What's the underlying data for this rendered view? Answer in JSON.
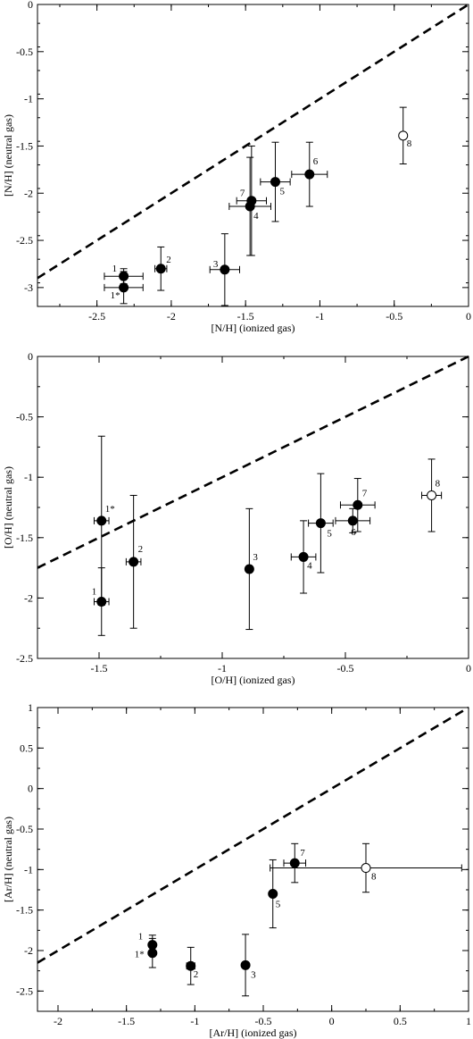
{
  "chart_data": [
    {
      "type": "scatter",
      "xlabel": "[N/H] (ionized gas)",
      "ylabel": "[N/H] (neutral gas)",
      "xlim": [
        -2.9,
        0
      ],
      "ylim": [
        -3.2,
        0
      ],
      "xticks": [
        -2.5,
        -2,
        -1.5,
        -1,
        -0.5,
        0
      ],
      "xtick_labels": [
        "-2.5",
        "-2",
        "-1.5",
        "-1",
        "-0.5",
        "0"
      ],
      "yticks": [
        0,
        -0.5,
        -1,
        -1.5,
        -2,
        -2.5,
        -3
      ],
      "ytick_labels": [
        "0",
        "-0.5",
        "-1",
        "-1.5",
        "-2",
        "-2.5",
        "-3"
      ],
      "one_to_one_line": true,
      "grid": false,
      "points": [
        {
          "label": "1",
          "x": -2.32,
          "y": -2.88,
          "xerr": 0.13,
          "yerr": 0.08,
          "filled": true
        },
        {
          "label": "1*",
          "x": -2.32,
          "y": -3.0,
          "xerr": 0.13,
          "yerr": 0.17,
          "filled": true
        },
        {
          "label": "2",
          "x": -2.07,
          "y": -2.8,
          "xerr": 0.04,
          "yerr": 0.23,
          "filled": true
        },
        {
          "label": "3",
          "x": -1.64,
          "y": -2.81,
          "xerr": 0.1,
          "yerr": 0.38,
          "filled": true
        },
        {
          "label": "4",
          "x": -1.47,
          "y": -2.14,
          "xerr": 0.14,
          "yerr": 0.52,
          "filled": true
        },
        {
          "label": "7",
          "x": -1.46,
          "y": -2.08,
          "xerr": 0.1,
          "yerr": 0.58,
          "filled": true
        },
        {
          "label": "5",
          "x": -1.3,
          "y": -1.88,
          "xerr": 0.1,
          "yerr": 0.42,
          "filled": true
        },
        {
          "label": "6",
          "x": -1.07,
          "y": -1.8,
          "xerr": 0.12,
          "yerr": 0.34,
          "filled": true
        },
        {
          "label": "8",
          "x": -0.44,
          "y": -1.39,
          "xerr": 0.0,
          "yerr": 0.3,
          "filled": false
        }
      ]
    },
    {
      "type": "scatter",
      "xlabel": "[O/H] (ionized gas)",
      "ylabel": "[O/H] (neutral gas)",
      "xlim": [
        -1.75,
        0
      ],
      "ylim": [
        -2.5,
        0
      ],
      "xticks": [
        -1.5,
        -1,
        -0.5,
        0
      ],
      "xtick_labels": [
        "-1.5",
        "-1",
        "-0.5",
        "0"
      ],
      "yticks": [
        0,
        -0.5,
        -1,
        -1.5,
        -2,
        -2.5
      ],
      "ytick_labels": [
        "0",
        "-0.5",
        "-1",
        "-1.5",
        "-2",
        "-2.5"
      ],
      "one_to_one_line": true,
      "grid": false,
      "points": [
        {
          "label": "1*",
          "x": -1.49,
          "y": -1.36,
          "xerr": 0.03,
          "yerr": 0.7,
          "filled": true
        },
        {
          "label": "1",
          "x": -1.49,
          "y": -2.03,
          "xerr": 0.03,
          "yerr": 0.28,
          "filled": true
        },
        {
          "label": "2",
          "x": -1.36,
          "y": -1.7,
          "xerr": 0.03,
          "yerr": 0.55,
          "filled": true
        },
        {
          "label": "3",
          "x": -0.89,
          "y": -1.76,
          "xerr": 0.0,
          "yerr": 0.5,
          "filled": true
        },
        {
          "label": "4",
          "x": -0.67,
          "y": -1.66,
          "xerr": 0.05,
          "yerr": 0.3,
          "filled": true
        },
        {
          "label": "5",
          "x": -0.6,
          "y": -1.38,
          "xerr": 0.05,
          "yerr": 0.41,
          "filled": true
        },
        {
          "label": "6",
          "x": -0.47,
          "y": -1.36,
          "xerr": 0.07,
          "yerr": 0.1,
          "filled": true
        },
        {
          "label": "7",
          "x": -0.45,
          "y": -1.23,
          "xerr": 0.07,
          "yerr": 0.22,
          "filled": true
        },
        {
          "label": "8",
          "x": -0.15,
          "y": -1.15,
          "xerr": 0.04,
          "yerr": 0.3,
          "filled": false
        }
      ]
    },
    {
      "type": "scatter",
      "xlabel": "[Ar/H] (ionized gas)",
      "ylabel": "[Ar/H] (neutral gas)",
      "xlim": [
        -2.15,
        1
      ],
      "ylim": [
        -2.75,
        1
      ],
      "xticks": [
        -2,
        -1.5,
        -1,
        -0.5,
        0,
        0.5,
        1
      ],
      "xtick_labels": [
        "-2",
        "-1.5",
        "-1",
        "-0.5",
        "0",
        "0.5",
        "1"
      ],
      "yticks": [
        1,
        0.5,
        0,
        -0.5,
        -1,
        -1.5,
        -2,
        -2.5
      ],
      "ytick_labels": [
        "1",
        "0.5",
        "0",
        "-0.5",
        "-1",
        "-1.5",
        "-2",
        "-2.5"
      ],
      "one_to_one_line": true,
      "grid": false,
      "points": [
        {
          "label": "1",
          "x": -1.31,
          "y": -1.93,
          "xerr": 0.0,
          "yerr": 0.12,
          "filled": true
        },
        {
          "label": "1*",
          "x": -1.31,
          "y": -2.03,
          "xerr": 0.0,
          "yerr": 0.18,
          "filled": true
        },
        {
          "label": "2",
          "x": -1.03,
          "y": -2.19,
          "xerr": 0.03,
          "yerr": 0.23,
          "filled": true
        },
        {
          "label": "3",
          "x": -0.63,
          "y": -2.18,
          "xerr": 0.0,
          "yerr": 0.38,
          "filled": true
        },
        {
          "label": "5",
          "x": -0.43,
          "y": -1.3,
          "xerr": 0.02,
          "yerr": 0.42,
          "filled": true
        },
        {
          "label": "7",
          "x": -0.27,
          "y": -0.92,
          "xerr": 0.08,
          "yerr": 0.24,
          "filled": true
        },
        {
          "label": "8",
          "x": 0.25,
          "y": -0.98,
          "xerr": 0.7,
          "yerr": 0.3,
          "filled": false
        }
      ]
    }
  ]
}
